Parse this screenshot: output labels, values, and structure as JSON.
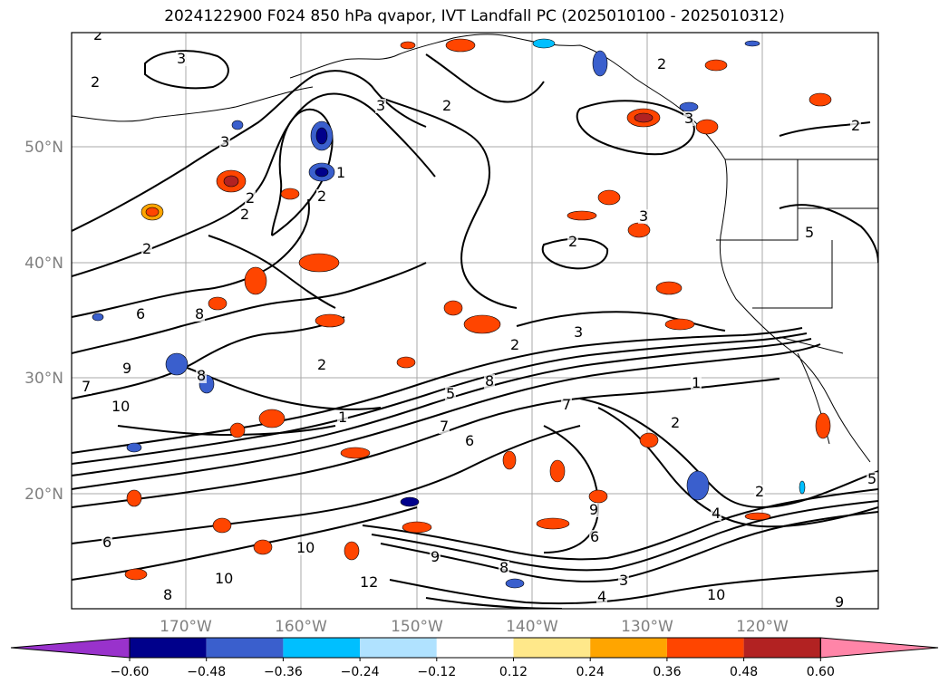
{
  "title": "2024122900 F024 850 hPa qvapor, IVT Landfall PC (2025010100 - 2025010312)",
  "lat_labels": [
    "50°N",
    "40°N",
    "30°N",
    "20°N"
  ],
  "lon_labels": [
    "170°W",
    "160°W",
    "150°W",
    "140°W",
    "130°W",
    "120°W"
  ],
  "colorbar": {
    "ticks": [
      "−0.60",
      "−0.48",
      "−0.36",
      "−0.24",
      "−0.12",
      "0.12",
      "0.24",
      "0.36",
      "0.48",
      "0.60"
    ],
    "colors": [
      "#9932CC",
      "#00008B",
      "#3A5FCD",
      "#00BFFF",
      "#B0E2FF",
      "#FFFFFF",
      "#FFE88A",
      "#FFA500",
      "#FF4500",
      "#B22222",
      "#FF85A8"
    ],
    "extend": "both"
  },
  "contour_labels": [
    "2",
    "3",
    "2",
    "3",
    "2",
    "1",
    "2",
    "3",
    "2",
    "2",
    "2",
    "6",
    "8",
    "9",
    "7",
    "10",
    "8",
    "2",
    "1",
    "3",
    "2",
    "8",
    "7",
    "5",
    "6",
    "3",
    "2",
    "2",
    "3",
    "5",
    "1",
    "7",
    "2",
    "4",
    "9",
    "6",
    "3",
    "8",
    "9",
    "10",
    "12",
    "10",
    "8",
    "6",
    "4",
    "10",
    "2",
    "2",
    "5",
    "9"
  ],
  "colors": {
    "grid": "#a8a8a8",
    "contour": "#000000",
    "axis_label": "#808080"
  }
}
